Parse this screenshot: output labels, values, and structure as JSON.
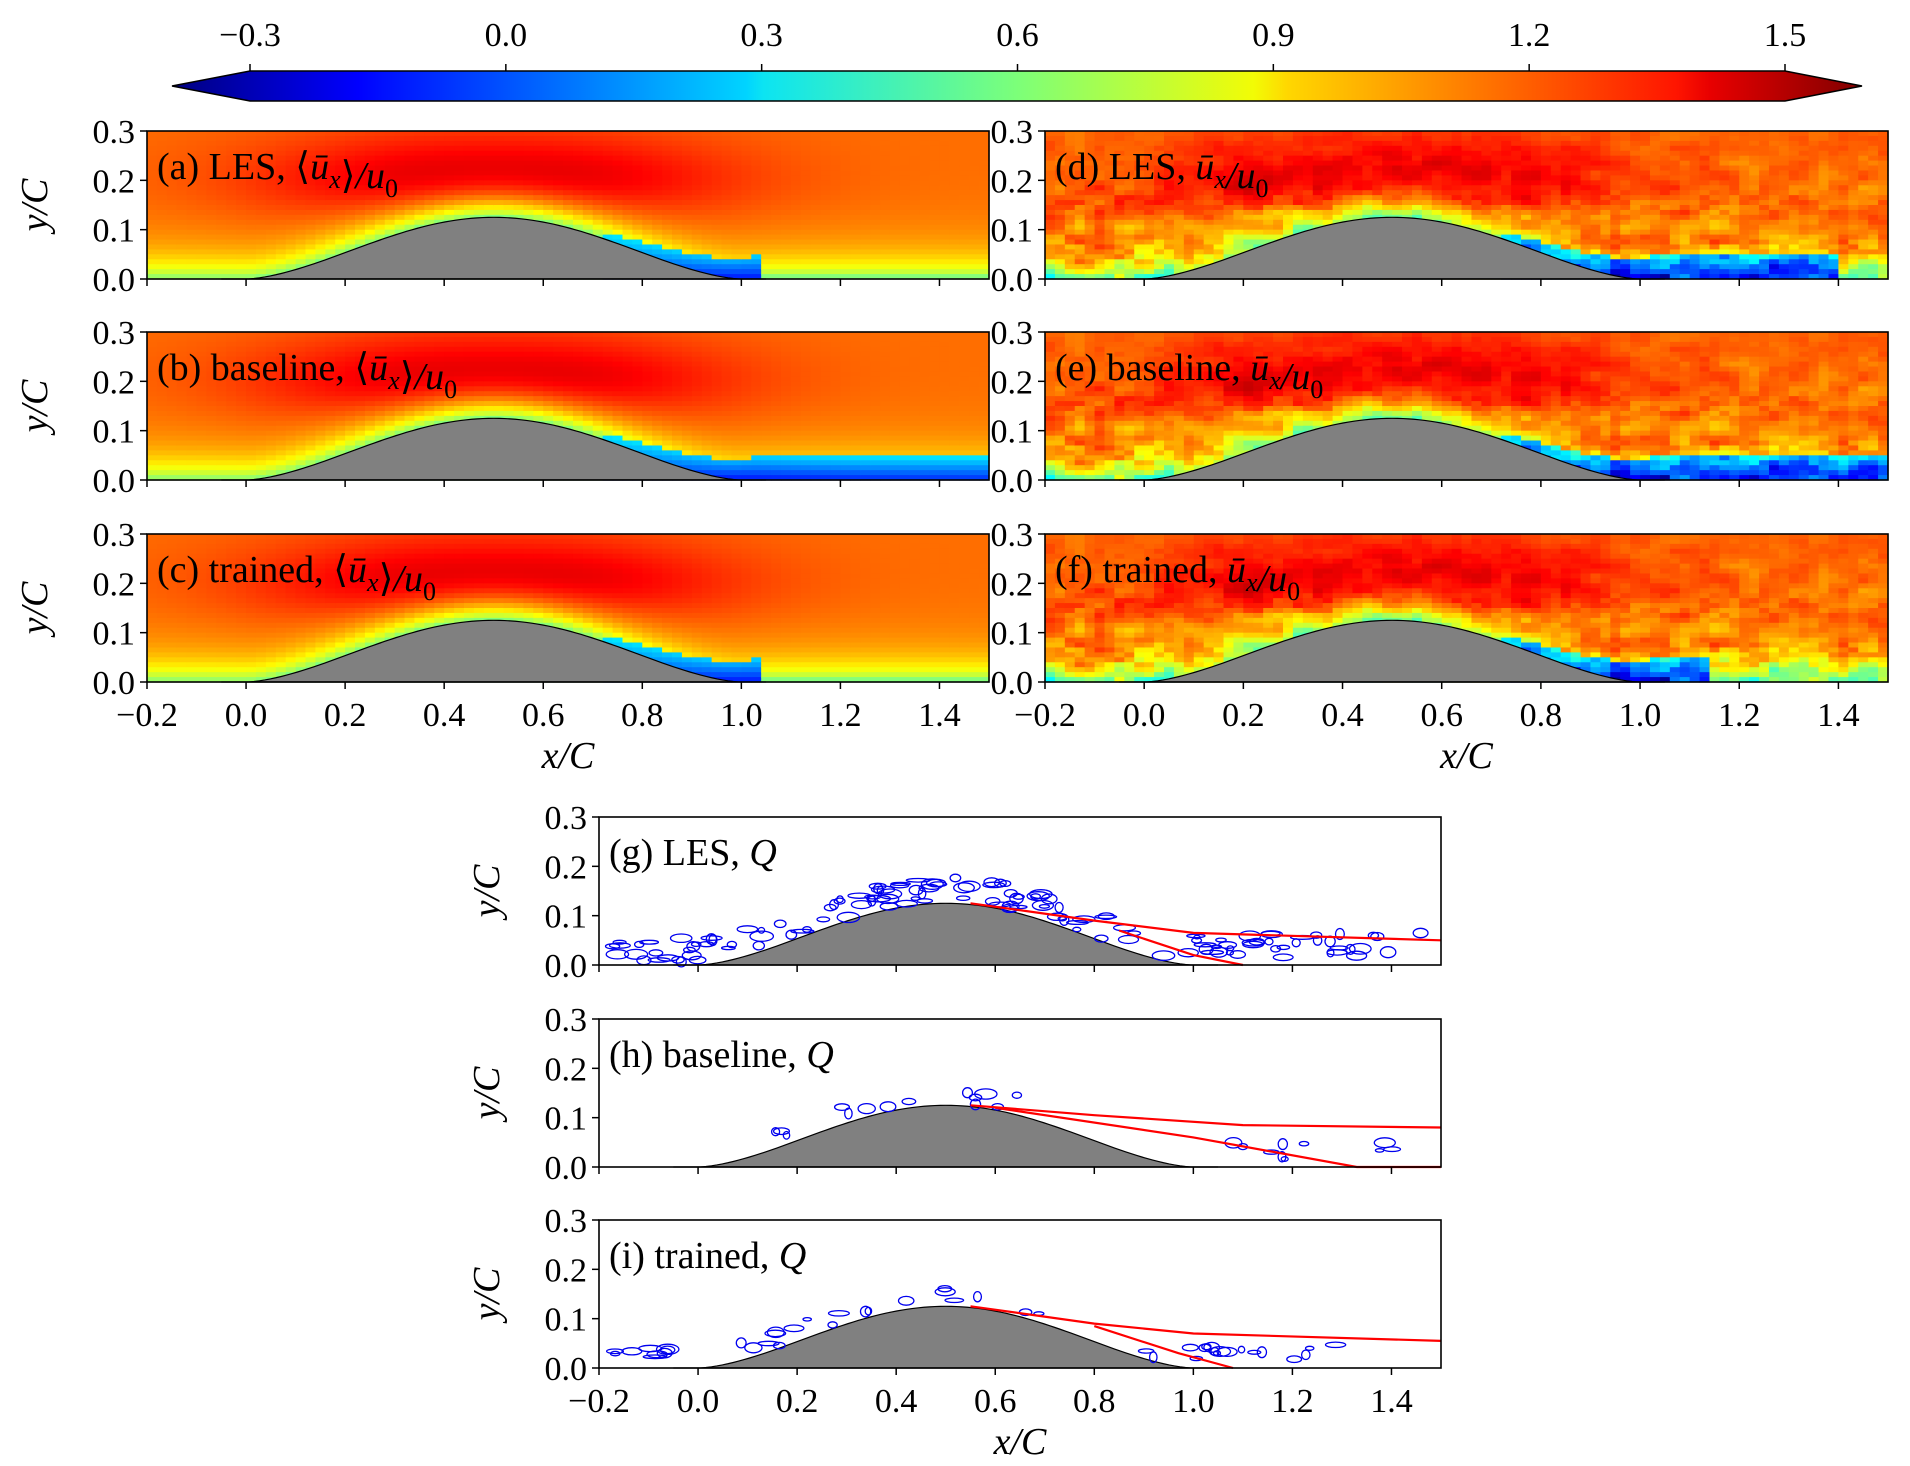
{
  "chart_data": {
    "type": "heatmap",
    "title": "",
    "colormap": "jet",
    "colorbar": {
      "ticks": [
        -0.3,
        0.0,
        0.3,
        0.6,
        0.9,
        1.2,
        1.5
      ],
      "tick_labels": [
        "−0.3",
        "0.0",
        "0.3",
        "0.6",
        "0.9",
        "1.2",
        "1.5"
      ],
      "vmin": -0.3,
      "vmax": 1.5,
      "extend": "both",
      "placement": "top"
    },
    "xlim": [
      -0.2,
      1.5
    ],
    "ylim": [
      0.0,
      0.3
    ],
    "x_ticks": [
      -0.2,
      0.0,
      0.2,
      0.4,
      0.6,
      0.8,
      1.0,
      1.2,
      1.4
    ],
    "x_tick_labels": [
      "−0.2",
      "0.0",
      "0.2",
      "0.4",
      "0.6",
      "0.8",
      "1.0",
      "1.2",
      "1.4"
    ],
    "y_ticks": [
      0.0,
      0.1,
      0.2,
      0.3
    ],
    "y_tick_labels": [
      "0.0",
      "0.1",
      "0.2",
      "0.3"
    ],
    "xlabel": "x/C",
    "ylabel": "y/C",
    "hill": {
      "start": 0.0,
      "end": 1.0,
      "peak_x": 0.5,
      "peak_y": 0.125
    },
    "panels": [
      {
        "id": "a",
        "prefix": "(a) LES, ",
        "math_left": "⟨",
        "math_var": "ū",
        "math_sub": "x",
        "math_right": "⟩",
        "math_tail": "/u",
        "math_tail_sub": "0",
        "field": "mean",
        "sep_end": 1.05
      },
      {
        "id": "b",
        "prefix": "(b) baseline, ",
        "math_left": "⟨",
        "math_var": "ū",
        "math_sub": "x",
        "math_right": "⟩",
        "math_tail": "/u",
        "math_tail_sub": "0",
        "field": "mean",
        "sep_end": 1.5
      },
      {
        "id": "c",
        "prefix": "(c) trained, ",
        "math_left": "⟨",
        "math_var": "ū",
        "math_sub": "x",
        "math_right": "⟩",
        "math_tail": "/u",
        "math_tail_sub": "0",
        "field": "mean",
        "sep_end": 1.05
      },
      {
        "id": "d",
        "prefix": "(d) LES, ",
        "math_left": "",
        "math_var": "ū",
        "math_sub": "x",
        "math_right": "",
        "math_tail": "/u",
        "math_tail_sub": "0",
        "field": "instant",
        "sep_end": 1.4
      },
      {
        "id": "e",
        "prefix": "(e) baseline, ",
        "math_left": "",
        "math_var": "ū",
        "math_sub": "x",
        "math_right": "",
        "math_tail": "/u",
        "math_tail_sub": "0",
        "field": "instant",
        "sep_end": 1.5
      },
      {
        "id": "f",
        "prefix": "(f) trained, ",
        "math_left": "",
        "math_var": "ū",
        "math_sub": "x",
        "math_right": "",
        "math_tail": "/u",
        "math_tail_sub": "0",
        "field": "instant",
        "sep_end": 1.15
      },
      {
        "id": "g",
        "prefix": "(g) LES, ",
        "math_var": "Q",
        "field": "Q",
        "contour_color": "#0000ee",
        "line_color": "#ff0000",
        "sep_upper": [
          [
            0.55,
            0.125
          ],
          [
            0.8,
            0.09
          ],
          [
            1.0,
            0.065
          ],
          [
            1.5,
            0.05
          ]
        ],
        "sep_lower": [
          [
            0.85,
            0.07
          ],
          [
            1.0,
            0.02
          ],
          [
            1.1,
            0.0
          ]
        ]
      },
      {
        "id": "h",
        "prefix": "(h) baseline, ",
        "math_var": "Q",
        "field": "Q",
        "contour_color": "#0000ee",
        "line_color": "#ff0000",
        "sep_upper": [
          [
            0.55,
            0.125
          ],
          [
            0.8,
            0.105
          ],
          [
            1.1,
            0.085
          ],
          [
            1.5,
            0.08
          ]
        ],
        "sep_lower": [
          [
            0.6,
            0.12
          ],
          [
            1.0,
            0.06
          ],
          [
            1.33,
            0.0
          ],
          [
            1.5,
            0.0
          ]
        ]
      },
      {
        "id": "i",
        "prefix": "(i) trained, ",
        "math_var": "Q",
        "field": "Q",
        "contour_color": "#0000ee",
        "line_color": "#ff0000",
        "sep_upper": [
          [
            0.55,
            0.125
          ],
          [
            0.8,
            0.09
          ],
          [
            1.0,
            0.07
          ],
          [
            1.5,
            0.055
          ]
        ],
        "sep_lower": [
          [
            0.8,
            0.085
          ],
          [
            0.97,
            0.03
          ],
          [
            1.08,
            0.0
          ]
        ]
      }
    ]
  }
}
